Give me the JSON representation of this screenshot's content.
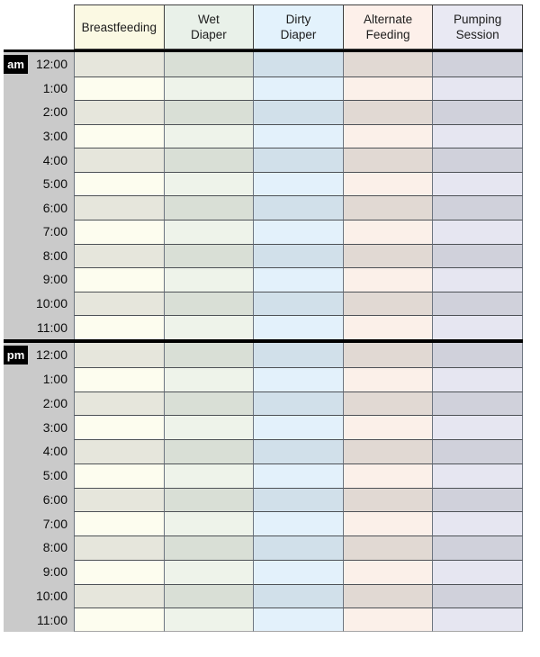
{
  "sheet": {
    "background": "#ffffff",
    "gutter_color": "#cacaca",
    "divider_color": "#000000",
    "row_line_color": "#4d5156",
    "column_line_color": "#6e7681",
    "badge_bg": "#000000",
    "badge_text_color": "#ffffff"
  },
  "columns": [
    {
      "id": "breastfeeding",
      "label": "Breastfeeding",
      "lines": [
        "Breastfeeding"
      ],
      "header_bg": "#fbf9e3",
      "cell_dark": "#e6e6dc",
      "cell_light": "#fdfdef"
    },
    {
      "id": "wet-diaper",
      "label": "Wet Diaper",
      "lines": [
        "Wet",
        "Diaper"
      ],
      "header_bg": "#e9f1e9",
      "cell_dark": "#d9dfd6",
      "cell_light": "#eef3ea"
    },
    {
      "id": "dirty-diaper",
      "label": "Dirty Diaper",
      "lines": [
        "Dirty",
        "Diaper"
      ],
      "header_bg": "#e3f2fc",
      "cell_dark": "#d1e0ea",
      "cell_light": "#e3f1fb"
    },
    {
      "id": "alternate-feeding",
      "label": "Alternate Feeding",
      "lines": [
        "Alternate",
        "Feeding"
      ],
      "header_bg": "#fdf0ea",
      "cell_dark": "#e1d9d3",
      "cell_light": "#fbf0e9"
    },
    {
      "id": "pumping-session",
      "label": "Pumping Session",
      "lines": [
        "Pumping",
        "Session"
      ],
      "header_bg": "#e9e9f3",
      "cell_dark": "#d0d1db",
      "cell_light": "#e6e6f1"
    }
  ],
  "sections": [
    {
      "period": "am",
      "times": [
        "12:00",
        "1:00",
        "2:00",
        "3:00",
        "4:00",
        "5:00",
        "6:00",
        "7:00",
        "8:00",
        "9:00",
        "10:00",
        "11:00"
      ]
    },
    {
      "period": "pm",
      "times": [
        "12:00",
        "1:00",
        "2:00",
        "3:00",
        "4:00",
        "5:00",
        "6:00",
        "7:00",
        "8:00",
        "9:00",
        "10:00",
        "11:00"
      ]
    }
  ]
}
